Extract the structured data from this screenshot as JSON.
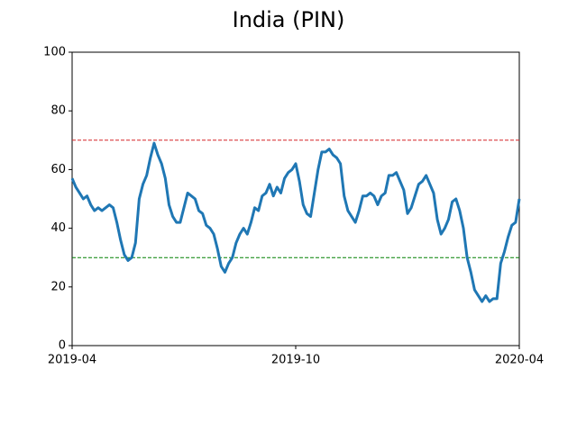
{
  "chart_data": {
    "type": "line",
    "title": "India (PIN)",
    "xlim": [
      "2019-04",
      "2020-04"
    ],
    "xticks": [
      "2019-04",
      "2019-10",
      "2020-04"
    ],
    "ylim": [
      0,
      100
    ],
    "yticks": [
      0,
      20,
      40,
      60,
      80,
      100
    ],
    "hlines": [
      {
        "value": 70,
        "color": "#d62728"
      },
      {
        "value": 30,
        "color": "#008000"
      }
    ],
    "series": [
      {
        "color": "#1f77b4",
        "values": [
          57,
          54,
          52,
          50,
          51,
          48,
          46,
          47,
          46,
          47,
          48,
          47,
          42,
          36,
          31,
          29,
          30,
          35,
          50,
          55,
          58,
          64,
          69,
          65,
          62,
          57,
          48,
          44,
          42,
          42,
          47,
          52,
          51,
          50,
          46,
          45,
          41,
          40,
          38,
          33,
          27,
          25,
          28,
          30,
          35,
          38,
          40,
          38,
          42,
          47,
          46,
          51,
          52,
          55,
          51,
          54,
          52,
          57,
          59,
          60,
          62,
          56,
          48,
          45,
          44,
          52,
          60,
          66,
          66,
          67,
          65,
          64,
          62,
          51,
          46,
          44,
          42,
          46,
          51,
          51,
          52,
          51,
          48,
          51,
          52,
          58,
          58,
          59,
          56,
          53,
          45,
          47,
          51,
          55,
          56,
          58,
          55,
          52,
          43,
          38,
          40,
          43,
          49,
          50,
          46,
          40,
          30,
          25,
          19,
          17,
          15,
          17,
          15,
          16,
          16,
          28,
          32,
          37,
          41,
          42,
          50
        ]
      }
    ]
  }
}
